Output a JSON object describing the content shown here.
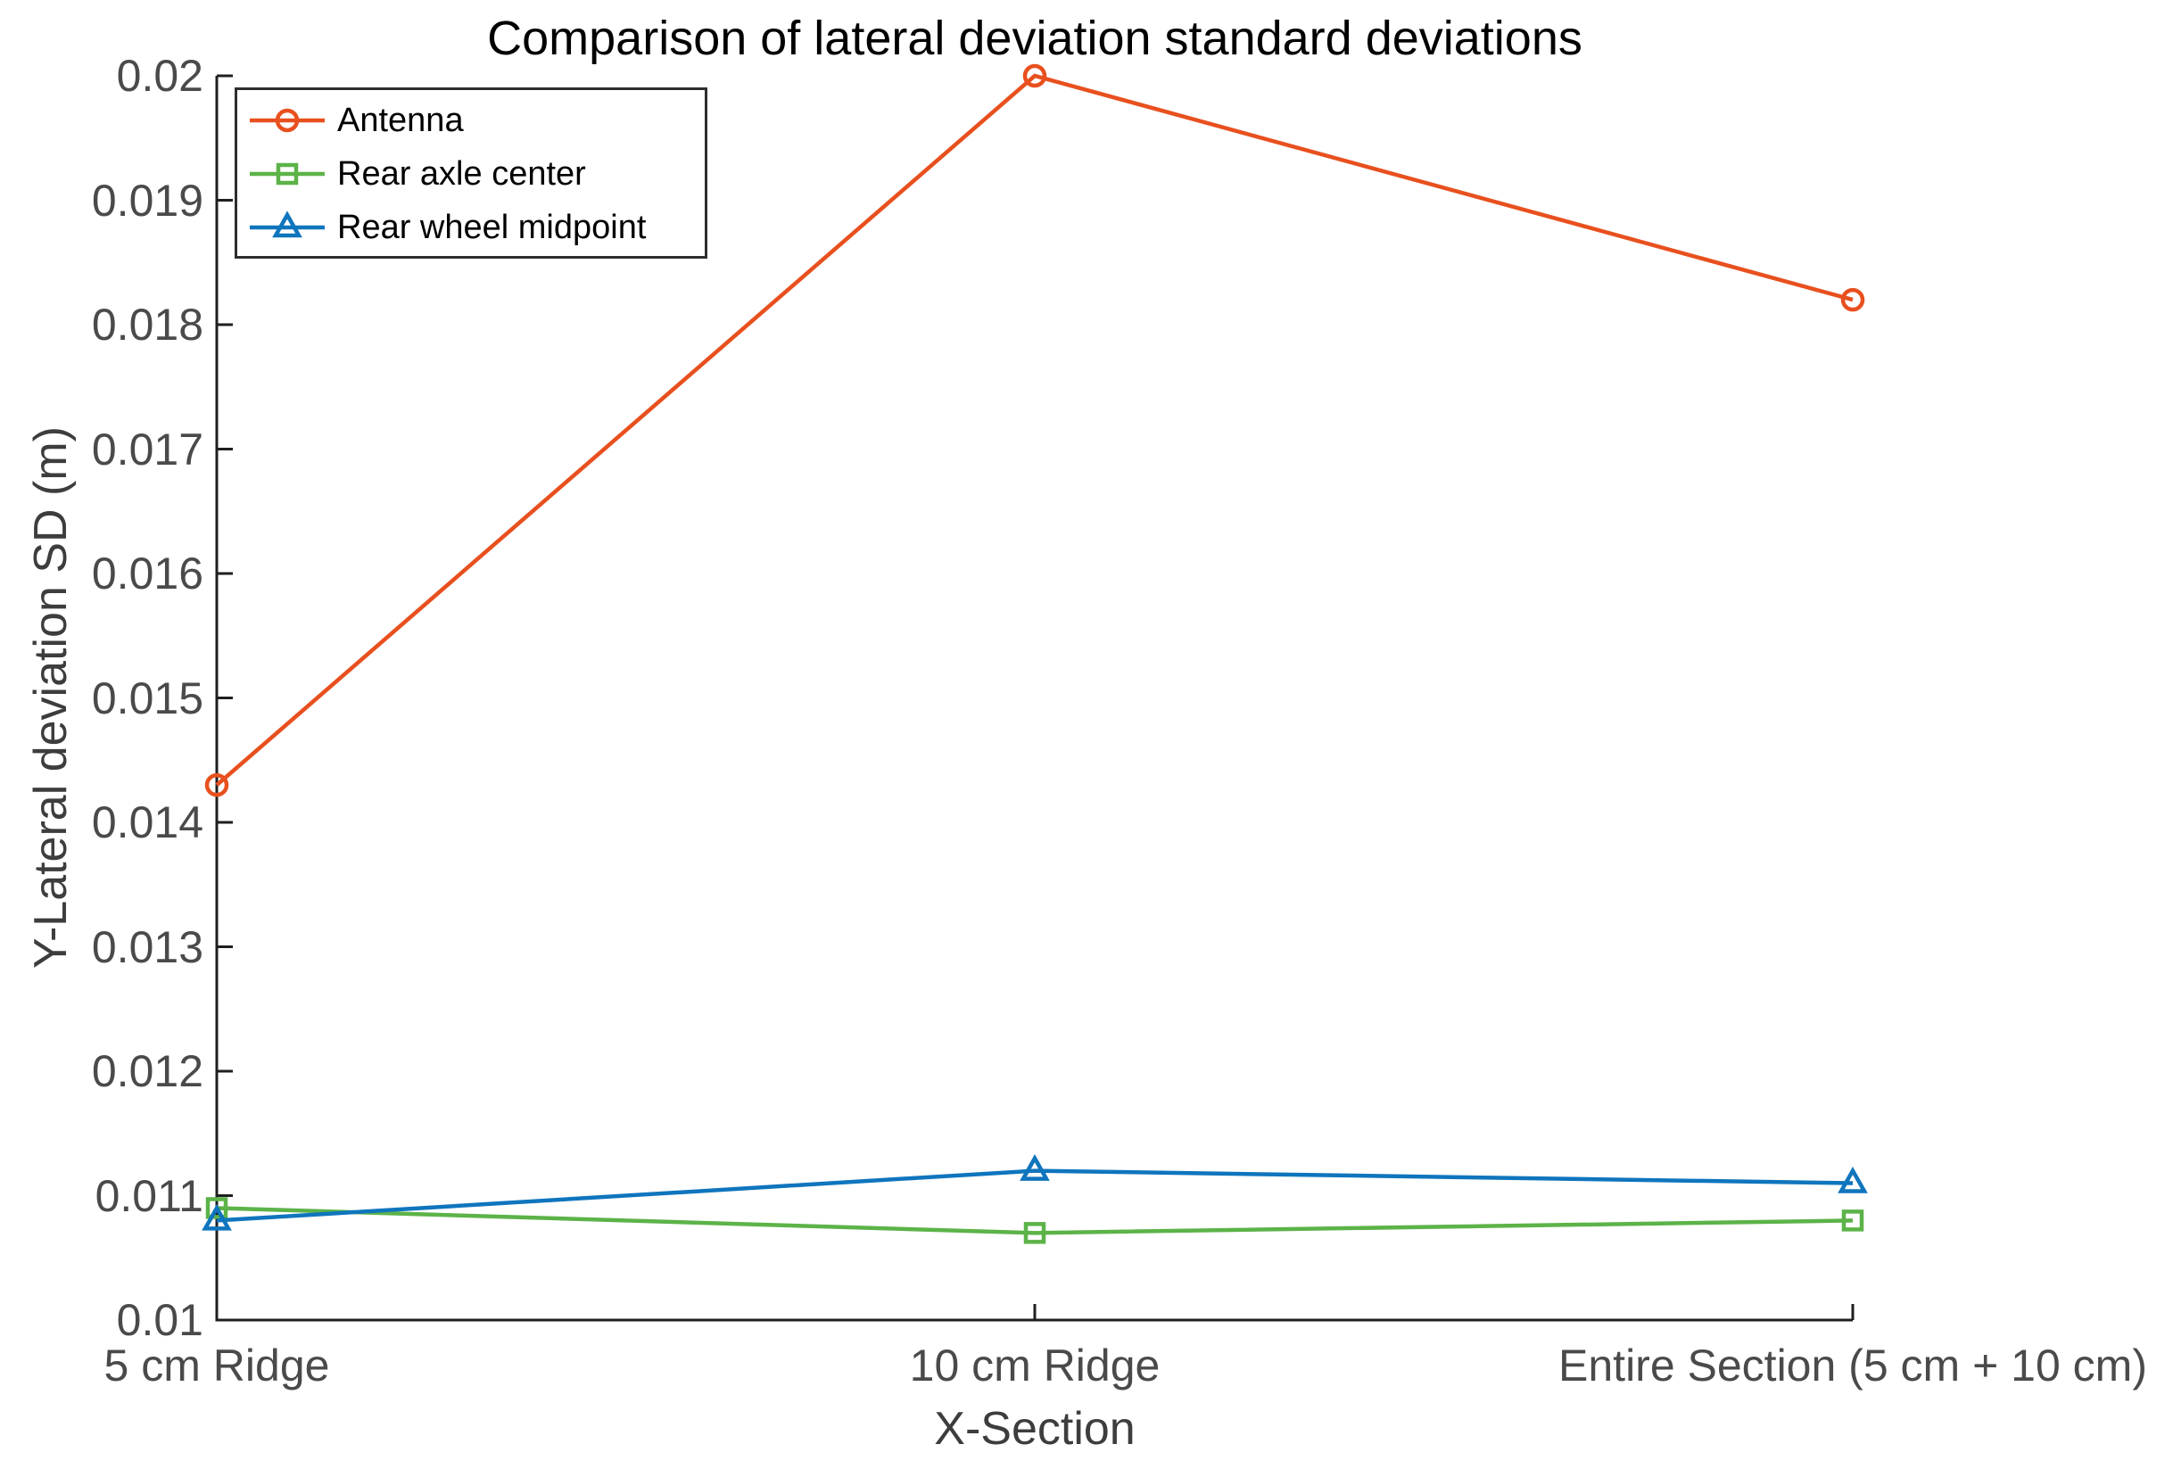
{
  "chart_data": {
    "type": "line",
    "title": "Comparison of lateral deviation standard deviations",
    "xlabel": "X-Section",
    "ylabel": "Y-Lateral deviation SD (m)",
    "categories": [
      "5 cm Ridge",
      "10 cm Ridge",
      "Entire Section (5 cm + 10 cm)"
    ],
    "ylim": [
      0.01,
      0.02
    ],
    "y_tick_labels": [
      "0.01",
      "0.011",
      "0.012",
      "0.013",
      "0.014",
      "0.015",
      "0.016",
      "0.017",
      "0.018",
      "0.019",
      "0.02"
    ],
    "grid": "off",
    "legend_position": "top-left",
    "series": [
      {
        "name": "Antenna",
        "color": "#E8501E",
        "marker": "circle",
        "values": [
          0.0143,
          0.02,
          0.0182
        ]
      },
      {
        "name": "Rear axle center",
        "color": "#5CB348",
        "marker": "square",
        "values": [
          0.0109,
          0.0107,
          0.0108
        ]
      },
      {
        "name": "Rear wheel midpoint",
        "color": "#0F75BD",
        "marker": "triangle",
        "values": [
          0.0108,
          0.0112,
          0.0111
        ]
      }
    ],
    "axis_color": "#1f1f1f"
  }
}
